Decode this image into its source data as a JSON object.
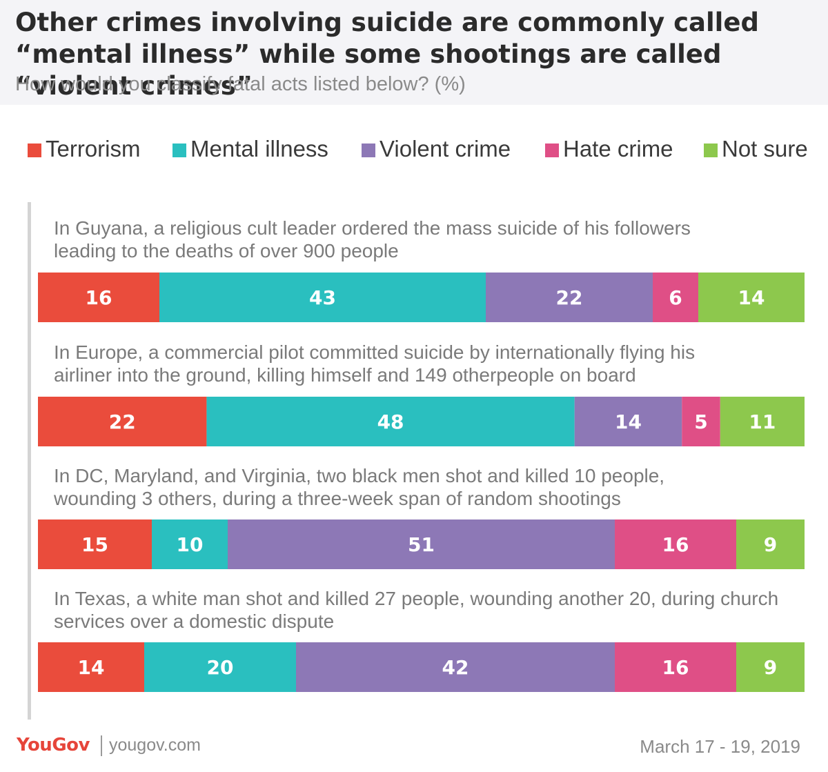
{
  "chart_data": {
    "type": "bar",
    "orientation": "horizontal",
    "stacked": true,
    "title": "Other crimes involving suicide are commonly called “mental illness” while some shootings are called “violent crimes”",
    "subtitle": "How would you classify fatal acts listed below? (%)",
    "legend_position": "top",
    "categories": [
      "In Guyana, a religious cult leader ordered the mass suicide of his followers leading to the deaths of over 900 people",
      "In Europe, a commercial pilot committed suicide by internationally flying his airliner into the ground, killing himself and 149 otherpeople on board",
      "In DC, Maryland, and Virginia, two black men shot and killed 10 people, wounding 3 others, during a three-week span of random shootings",
      "In Texas, a white man shot and killed 27 people, wounding another 20, during church services over a domestic dispute"
    ],
    "category_lines": [
      [
        "In Guyana, a religious cult leader ordered the mass suicide of his followers",
        "leading to the deaths of over 900 people"
      ],
      [
        "In Europe, a commercial pilot committed suicide by internationally flying his",
        "airliner into the ground, killing himself and 149 otherpeople on board"
      ],
      [
        "In DC, Maryland, and Virginia, two black men shot and killed 10 people,",
        "wounding 3 others, during a three-week span of random shootings"
      ],
      [
        "In Texas, a white man shot and killed 27 people, wounding another 20, during church",
        "services over a domestic dispute"
      ]
    ],
    "series": [
      {
        "name": "Terrorism",
        "color": "#ea4c3c",
        "values": [
          16,
          22,
          15,
          14
        ]
      },
      {
        "name": "Mental illness",
        "color": "#2abfbf",
        "values": [
          43,
          48,
          10,
          20
        ]
      },
      {
        "name": "Violent crime",
        "color": "#8d78b6",
        "values": [
          22,
          14,
          51,
          42
        ]
      },
      {
        "name": "Hate crime",
        "color": "#df4f86",
        "values": [
          6,
          5,
          16,
          16
        ]
      },
      {
        "name": "Not sure",
        "color": "#8dc84d",
        "values": [
          14,
          11,
          9,
          9
        ]
      }
    ]
  },
  "footer": {
    "brand": "YouGov",
    "url": "yougov.com",
    "date": "March 17 - 19, 2019"
  }
}
